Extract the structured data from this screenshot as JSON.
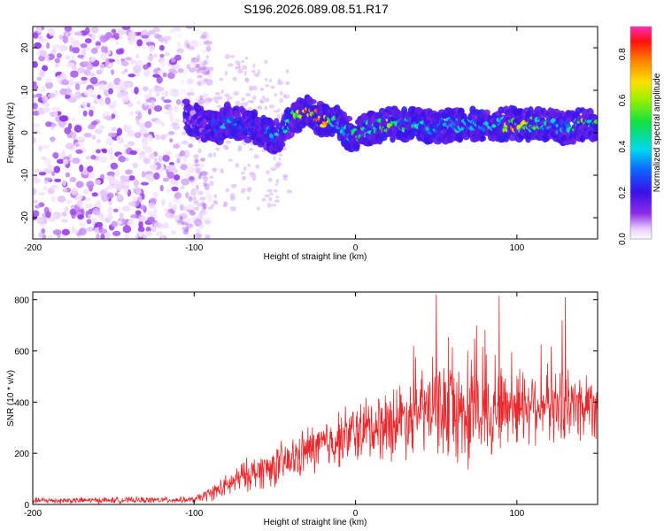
{
  "figure_title": "S196.2026.089.08.51.R17",
  "chart_data": [
    {
      "type": "heatmap",
      "title": "S196.2026.089.08.51.R17",
      "xlabel": "Height of straight line (km)",
      "ylabel": "Frequency (Hz)",
      "xlim": [
        -200,
        150
      ],
      "ylim": [
        -25,
        25
      ],
      "x_ticks": [
        -200,
        -100,
        0,
        100
      ],
      "x_tick_labels": [
        "-200",
        "-100",
        "0",
        "100"
      ],
      "y_ticks": [
        -20,
        -10,
        0,
        10,
        20
      ],
      "y_tick_labels": [
        "-20",
        "-10",
        "0",
        "10",
        "20"
      ],
      "colorbar": {
        "label": "Normalized spectral amplitude",
        "range": [
          0,
          0.92
        ],
        "ticks": [
          0.0,
          0.2,
          0.4,
          0.6,
          0.8
        ],
        "tick_labels": [
          "0.0",
          "0.2",
          "0.4",
          "0.6",
          "0.8"
        ]
      },
      "noise_region": {
        "x_range": [
          -200,
          -100
        ],
        "freq_range": [
          -25,
          25
        ],
        "amplitude_range": [
          0.02,
          0.12
        ]
      },
      "ridge": {
        "x": [
          -105,
          -95,
          -85,
          -80,
          -70,
          -60,
          -50,
          -45,
          -40,
          -35,
          -30,
          -25,
          -20,
          -15,
          -10,
          -5,
          0,
          5,
          10,
          20,
          30,
          40,
          50,
          60,
          70,
          80,
          90,
          100,
          110,
          120,
          130,
          140,
          150
        ],
        "freq": [
          4,
          2,
          1,
          3,
          2,
          1,
          -1,
          0,
          3,
          4,
          5,
          4,
          3,
          3,
          2,
          0,
          -1,
          1,
          1,
          2,
          2,
          2,
          1,
          2,
          2,
          2,
          2,
          2,
          2,
          2,
          1,
          2,
          2
        ],
        "amplitude": [
          0.1,
          0.14,
          0.3,
          0.4,
          0.3,
          0.25,
          0.4,
          0.35,
          0.55,
          0.75,
          0.9,
          0.7,
          0.9,
          0.65,
          0.5,
          0.45,
          0.6,
          0.55,
          0.45,
          0.6,
          0.45,
          0.55,
          0.35,
          0.45,
          0.4,
          0.4,
          0.45,
          0.9,
          0.55,
          0.45,
          0.4,
          0.6,
          0.55
        ]
      }
    },
    {
      "type": "line",
      "xlabel": "Height of straight line (km)",
      "ylabel": "SNR (10 * v/v)",
      "xlim": [
        -200,
        150
      ],
      "ylim": [
        0,
        830
      ],
      "x_ticks": [
        -200,
        -100,
        0,
        100
      ],
      "x_tick_labels": [
        "-200",
        "-100",
        "0",
        "100"
      ],
      "y_ticks": [
        0,
        200,
        400,
        600,
        800
      ],
      "y_tick_labels": [
        "0",
        "200",
        "400",
        "600",
        "800"
      ],
      "color": "#e8282c",
      "envelope": {
        "x": [
          -200,
          -100,
          -95,
          -80,
          -70,
          -60,
          -50,
          -40,
          -30,
          -20,
          -10,
          0,
          10,
          20,
          30,
          40,
          50,
          60,
          70,
          80,
          90,
          100,
          110,
          120,
          130,
          140,
          150
        ],
        "mean": [
          15,
          18,
          30,
          70,
          110,
          130,
          150,
          170,
          210,
          230,
          260,
          280,
          300,
          320,
          340,
          360,
          380,
          370,
          340,
          360,
          380,
          390,
          400,
          390,
          380,
          390,
          400
        ],
        "spread": [
          12,
          12,
          20,
          45,
          60,
          70,
          80,
          85,
          95,
          100,
          110,
          120,
          130,
          140,
          150,
          160,
          180,
          200,
          200,
          180,
          170,
          160,
          150,
          140,
          140,
          140,
          140
        ]
      },
      "peaks": [
        {
          "x": 50,
          "y": 820
        },
        {
          "x": 89,
          "y": 815
        },
        {
          "x": 130,
          "y": 810
        },
        {
          "x": 128,
          "y": 720
        },
        {
          "x": 75,
          "y": 700
        }
      ]
    }
  ]
}
